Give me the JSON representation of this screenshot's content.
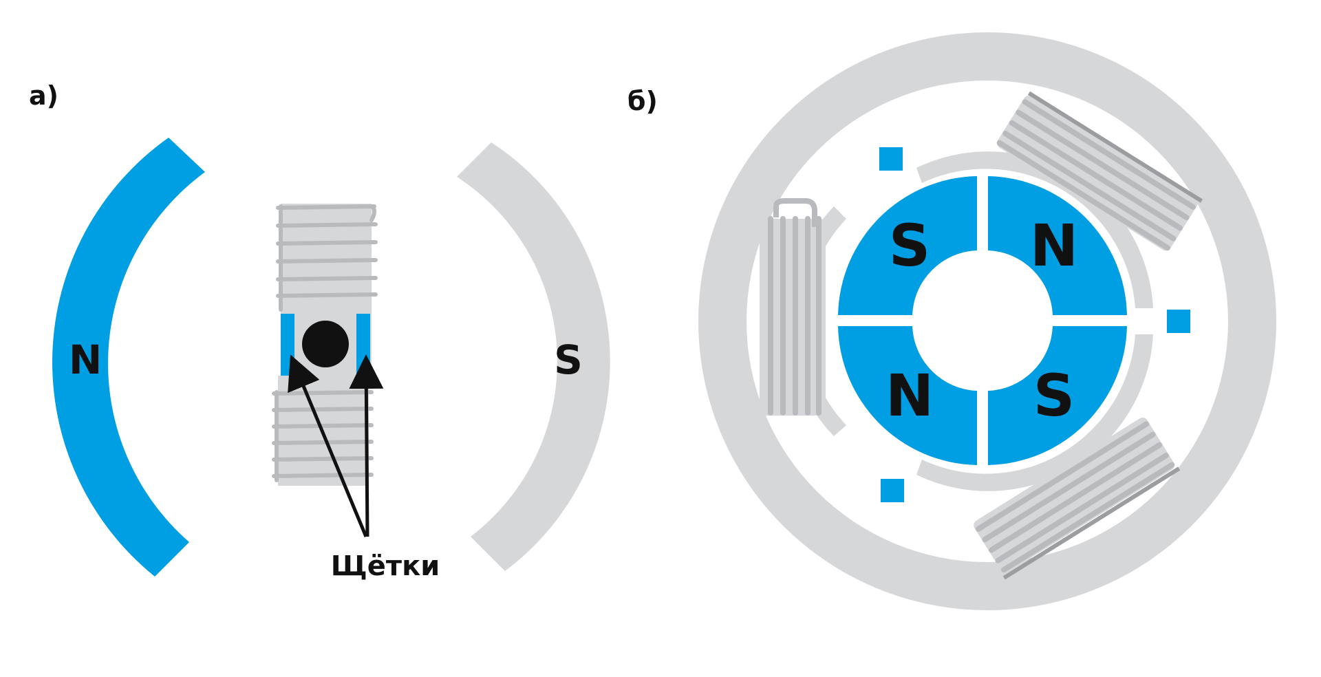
{
  "colors": {
    "blue": "#009ee2",
    "stator_gray": "#d6d7d9",
    "coil_gray": "#b9babd",
    "coil_dark": "#9c9da0",
    "ink": "#111111",
    "background": "#ffffff"
  },
  "panel_a": {
    "label": "а)",
    "magnet_left_pole": "N",
    "magnet_right_pole": "S",
    "brushes_caption": "Щётки"
  },
  "panel_b": {
    "label": "б)",
    "rotor_poles": {
      "top_left": "S",
      "top_right": "N",
      "bottom_left": "N",
      "bottom_right": "S"
    }
  }
}
